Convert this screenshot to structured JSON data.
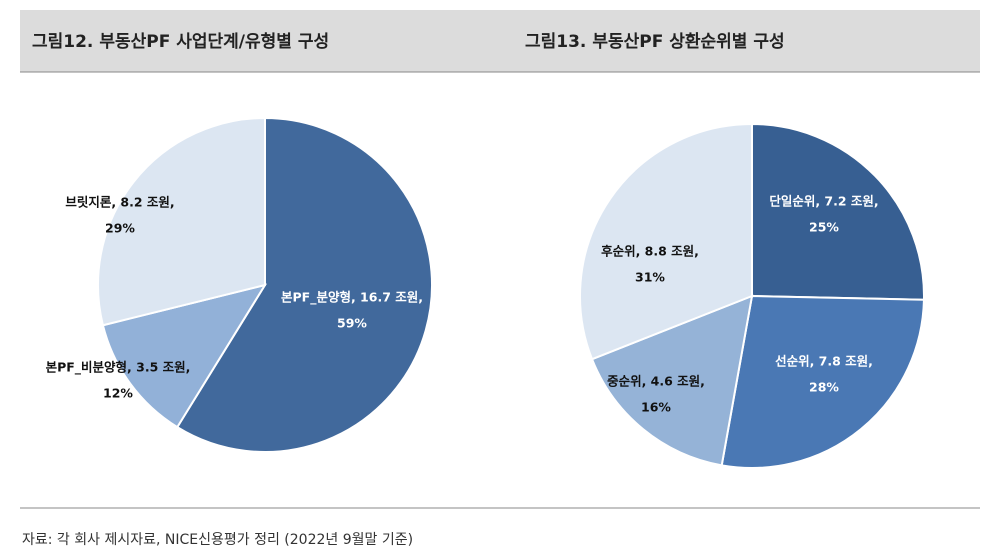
{
  "charts": [
    {
      "type": "pie",
      "title": "그림12. 부동산PF 사업단계/유형별 구성",
      "values": [
        16.7,
        3.5,
        8.2
      ],
      "value_labels": [
        "본PF_분양형,  16.7 조원,",
        "본PF_비분양형,  3.5 조원,",
        "브릿지론,  8.2 조원,"
      ],
      "shares": [
        59,
        12,
        29
      ],
      "share_labels": [
        "59%",
        "12%",
        "29%"
      ],
      "colors": [
        "#41699c",
        "#92b1d8",
        "#dce6f2"
      ]
    },
    {
      "type": "pie",
      "title": "그림13. 부동산PF 상환순위별 구성",
      "values": [
        7.2,
        7.8,
        4.6,
        8.8
      ],
      "value_labels": [
        "단일순위,  7.2 조원,",
        "선순위,  7.8 조원,",
        "중순위,  4.6 조원,",
        "후순위,  8.8 조원,"
      ],
      "shares": [
        25,
        28,
        16,
        31
      ],
      "share_labels": [
        "25%",
        "28%",
        "16%",
        "31%"
      ],
      "colors": [
        "#375f92",
        "#4a78b4",
        "#95b3d7",
        "#dce6f2"
      ]
    }
  ],
  "source": "자료: 각 회사 제시자료, NICE신용평가 정리 (2022년 9월말 기준)"
}
